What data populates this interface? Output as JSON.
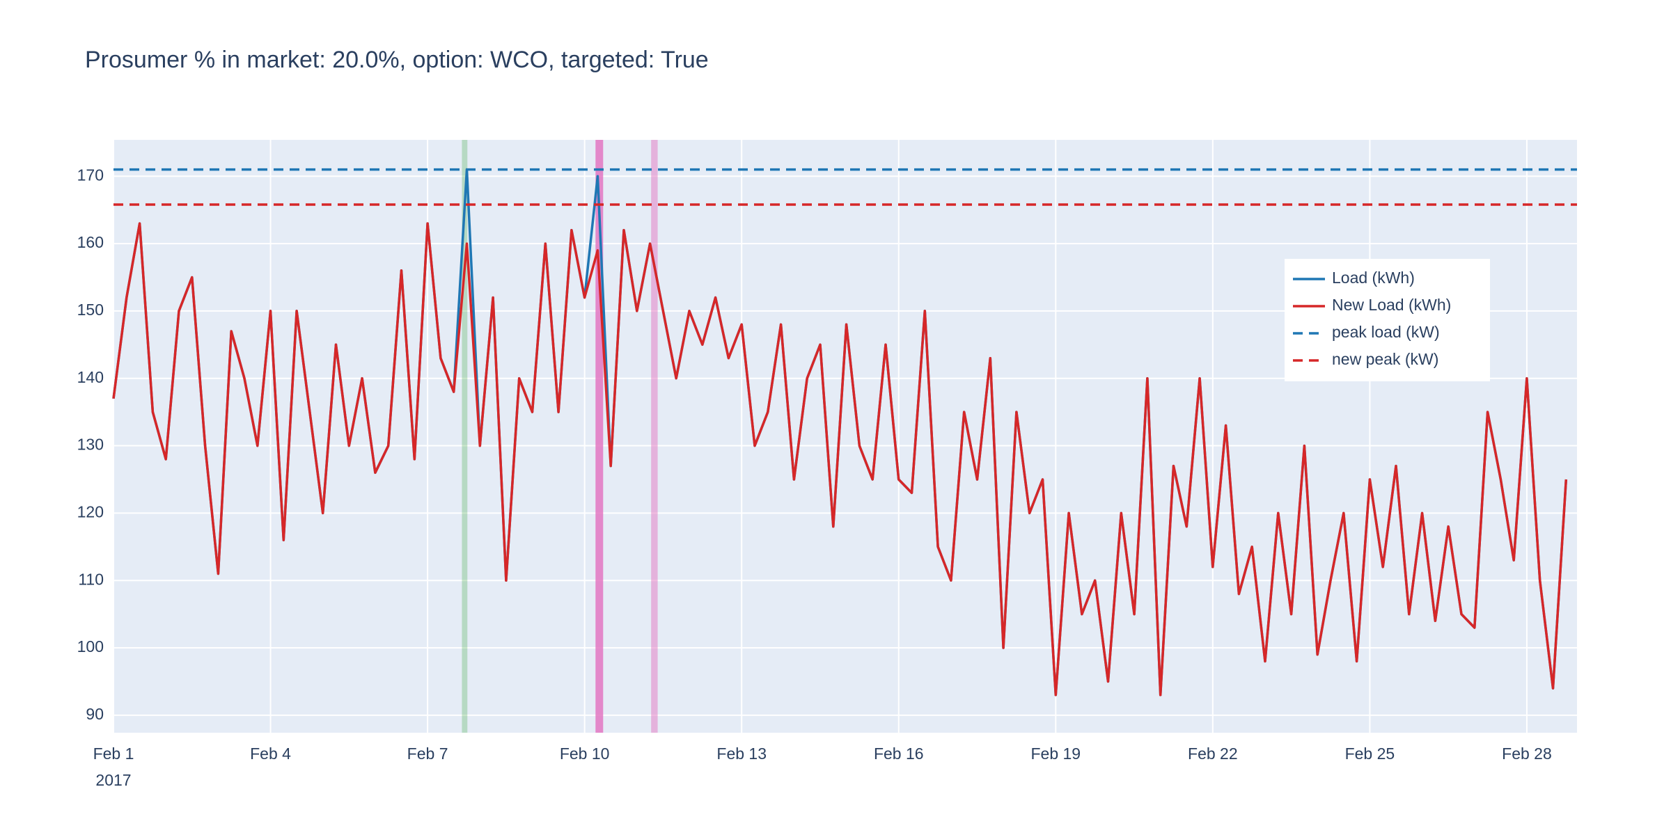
{
  "chart_data": {
    "type": "line",
    "title": "Prosumer % in market: 20.0%, option: WCO, targeted: True",
    "x": [
      "2017-02-01 00:00",
      "2017-02-01 06:00",
      "2017-02-01 12:00",
      "2017-02-01 18:00",
      "2017-02-02 00:00",
      "2017-02-02 06:00",
      "2017-02-02 12:00",
      "2017-02-02 18:00",
      "2017-02-03 00:00",
      "2017-02-03 06:00",
      "2017-02-03 12:00",
      "2017-02-03 18:00",
      "2017-02-04 00:00",
      "2017-02-04 06:00",
      "2017-02-04 12:00",
      "2017-02-04 18:00",
      "2017-02-05 00:00",
      "2017-02-05 06:00",
      "2017-02-05 12:00",
      "2017-02-05 18:00",
      "2017-02-06 00:00",
      "2017-02-06 06:00",
      "2017-02-06 12:00",
      "2017-02-06 18:00",
      "2017-02-07 00:00",
      "2017-02-07 06:00",
      "2017-02-07 12:00",
      "2017-02-07 18:00",
      "2017-02-08 00:00",
      "2017-02-08 06:00",
      "2017-02-08 12:00",
      "2017-02-08 18:00",
      "2017-02-09 00:00",
      "2017-02-09 06:00",
      "2017-02-09 12:00",
      "2017-02-09 18:00",
      "2017-02-10 00:00",
      "2017-02-10 06:00",
      "2017-02-10 12:00",
      "2017-02-10 18:00",
      "2017-02-11 00:00",
      "2017-02-11 06:00",
      "2017-02-11 12:00",
      "2017-02-11 18:00",
      "2017-02-12 00:00",
      "2017-02-12 06:00",
      "2017-02-12 12:00",
      "2017-02-12 18:00",
      "2017-02-13 00:00",
      "2017-02-13 06:00",
      "2017-02-13 12:00",
      "2017-02-13 18:00",
      "2017-02-14 00:00",
      "2017-02-14 06:00",
      "2017-02-14 12:00",
      "2017-02-14 18:00",
      "2017-02-15 00:00",
      "2017-02-15 06:00",
      "2017-02-15 12:00",
      "2017-02-15 18:00",
      "2017-02-16 00:00",
      "2017-02-16 06:00",
      "2017-02-16 12:00",
      "2017-02-16 18:00",
      "2017-02-17 00:00",
      "2017-02-17 06:00",
      "2017-02-17 12:00",
      "2017-02-17 18:00",
      "2017-02-18 00:00",
      "2017-02-18 06:00",
      "2017-02-18 12:00",
      "2017-02-18 18:00",
      "2017-02-19 00:00",
      "2017-02-19 06:00",
      "2017-02-19 12:00",
      "2017-02-19 18:00",
      "2017-02-20 00:00",
      "2017-02-20 06:00",
      "2017-02-20 12:00",
      "2017-02-20 18:00",
      "2017-02-21 00:00",
      "2017-02-21 06:00",
      "2017-02-21 12:00",
      "2017-02-21 18:00",
      "2017-02-22 00:00",
      "2017-02-22 06:00",
      "2017-02-22 12:00",
      "2017-02-22 18:00",
      "2017-02-23 00:00",
      "2017-02-23 06:00",
      "2017-02-23 12:00",
      "2017-02-23 18:00",
      "2017-02-24 00:00",
      "2017-02-24 06:00",
      "2017-02-24 12:00",
      "2017-02-24 18:00",
      "2017-02-25 00:00",
      "2017-02-25 06:00",
      "2017-02-25 12:00",
      "2017-02-25 18:00",
      "2017-02-26 00:00",
      "2017-02-26 06:00",
      "2017-02-26 12:00",
      "2017-02-26 18:00",
      "2017-02-27 00:00",
      "2017-02-27 06:00",
      "2017-02-27 12:00",
      "2017-02-27 18:00",
      "2017-02-28 00:00",
      "2017-02-28 06:00",
      "2017-02-28 12:00",
      "2017-02-28 18:00"
    ],
    "series": [
      {
        "name": "Load (kWh)",
        "color": "#1f77b4",
        "values": [
          137,
          152,
          163,
          135,
          128,
          150,
          155,
          130,
          111,
          147,
          140,
          130,
          150,
          116,
          150,
          135,
          120,
          145,
          130,
          140,
          126,
          130,
          156,
          128,
          163,
          143,
          138,
          171,
          130,
          152,
          110,
          140,
          135,
          160,
          135,
          162,
          152,
          170,
          127,
          162,
          150,
          160,
          150,
          140,
          150,
          145,
          152,
          143,
          148,
          130,
          135,
          148,
          125,
          140,
          145,
          118,
          148,
          130,
          125,
          145,
          125,
          123,
          150,
          115,
          110,
          135,
          125,
          143,
          100,
          135,
          120,
          125,
          93,
          120,
          105,
          110,
          95,
          120,
          105,
          140,
          93,
          127,
          118,
          140,
          112,
          133,
          108,
          115,
          98,
          120,
          105,
          130,
          99,
          110,
          120,
          98,
          125,
          112,
          127,
          105,
          120,
          104,
          118,
          105,
          103,
          135,
          125,
          113,
          140,
          110,
          94,
          125
        ]
      },
      {
        "name": "New Load (kWh)",
        "color": "#d62728",
        "values": [
          137,
          152,
          163,
          135,
          128,
          150,
          155,
          130,
          111,
          147,
          140,
          130,
          150,
          116,
          150,
          135,
          120,
          145,
          130,
          140,
          126,
          130,
          156,
          128,
          163,
          143,
          138,
          160,
          130,
          152,
          110,
          140,
          135,
          160,
          135,
          162,
          152,
          159,
          127,
          162,
          150,
          160,
          150,
          140,
          150,
          145,
          152,
          143,
          148,
          130,
          135,
          148,
          125,
          140,
          145,
          118,
          148,
          130,
          125,
          145,
          125,
          123,
          150,
          115,
          110,
          135,
          125,
          143,
          100,
          135,
          120,
          125,
          93,
          120,
          105,
          110,
          95,
          120,
          105,
          140,
          93,
          127,
          118,
          140,
          112,
          133,
          108,
          115,
          98,
          120,
          105,
          130,
          99,
          110,
          120,
          98,
          125,
          112,
          127,
          105,
          120,
          104,
          118,
          105,
          103,
          135,
          125,
          113,
          140,
          110,
          94,
          125
        ]
      }
    ],
    "hlines": [
      {
        "name": "peak load (kW)",
        "color": "#1f77b4",
        "value": 171
      },
      {
        "name": "new peak (kW)",
        "color": "#d62728",
        "value": 165.8
      }
    ],
    "shaded_regions": [
      {
        "x0": "2017-02-07 15:45",
        "x1": "2017-02-07 18:15",
        "color": "rgba(44,160,44,0.25)"
      },
      {
        "x0": "2017-02-10 05:00",
        "x1": "2017-02-10 08:30",
        "color": "rgba(227,119,194,0.85)"
      },
      {
        "x0": "2017-02-11 06:30",
        "x1": "2017-02-11 09:30",
        "color": "rgba(227,119,194,0.5)"
      }
    ],
    "xlim": [
      "2017-02-01 00:00",
      "2017-02-28 23:00"
    ],
    "xticks": [
      {
        "value": "2017-02-01 00:00",
        "label": "Feb 1"
      },
      {
        "value": "2017-02-04 00:00",
        "label": "Feb 4"
      },
      {
        "value": "2017-02-07 00:00",
        "label": "Feb 7"
      },
      {
        "value": "2017-02-10 00:00",
        "label": "Feb 10"
      },
      {
        "value": "2017-02-13 00:00",
        "label": "Feb 13"
      },
      {
        "value": "2017-02-16 00:00",
        "label": "Feb 16"
      },
      {
        "value": "2017-02-19 00:00",
        "label": "Feb 19"
      },
      {
        "value": "2017-02-22 00:00",
        "label": "Feb 22"
      },
      {
        "value": "2017-02-25 00:00",
        "label": "Feb 25"
      },
      {
        "value": "2017-02-28 00:00",
        "label": "Feb 28"
      }
    ],
    "x_year_label": "2017",
    "ylim": [
      87.4,
      175.4
    ],
    "yticks": [
      90,
      100,
      110,
      120,
      130,
      140,
      150,
      160,
      170
    ],
    "grid": true,
    "legend_position": "upper-right"
  }
}
